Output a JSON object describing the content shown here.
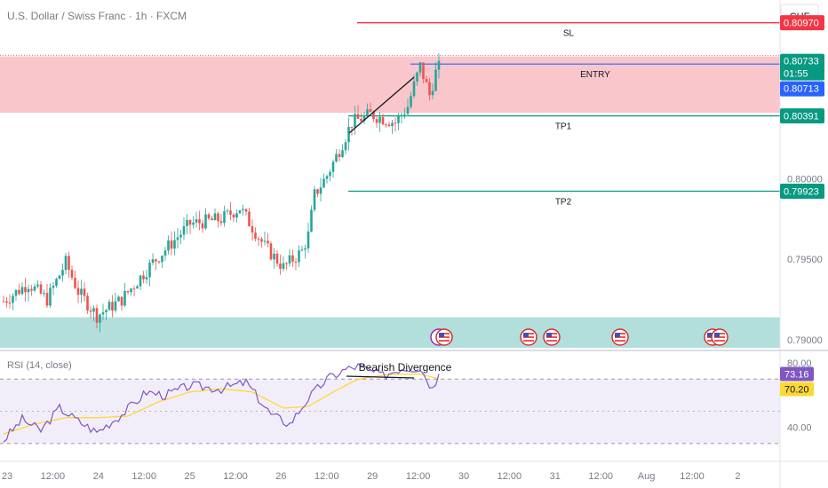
{
  "header": {
    "title": "U.S. Dollar / Swiss Franc · 1h · FXCM",
    "currency": "CHF"
  },
  "price_axis": {
    "ticks": [
      "0.80000",
      "0.79500",
      "0.79000"
    ],
    "badges": {
      "sl": "0.80970",
      "last": "0.80733",
      "countdown": "01:55",
      "entry": "0.80713",
      "tp1": "0.80391",
      "tp2": "0.79923"
    }
  },
  "annotations": {
    "sl": "SL",
    "entry": "ENTRY",
    "tp1": "TP1",
    "tp2": "TP2",
    "divergence": "Bearish Divergence"
  },
  "rsi_panel": {
    "label": "RSI (14, close)",
    "ticks": [
      "80.00",
      "40.00"
    ],
    "rsi_value": "73.16",
    "ma_value": "70.20"
  },
  "time_axis": {
    "labels": [
      "23",
      "12:00",
      "24",
      "12:00",
      "25",
      "12:00",
      "26",
      "12:00",
      "29",
      "12:00",
      "30",
      "12:00",
      "31",
      "12:00",
      "Aug",
      "12:00",
      "2"
    ]
  },
  "colors": {
    "up": "#26a69a",
    "down": "#ef5350",
    "sl_line": "#f23645",
    "tp_line": "#089981",
    "entry_line": "#2962ff",
    "rsi_line": "#7e57c2",
    "rsi_ma": "#fdd835",
    "resistance_zone": "#f9c6cb",
    "support_zone": "#b2dfdb"
  },
  "chart_data": [
    {
      "type": "candlestick",
      "symbol": "USDCHF",
      "timeframe": "1h",
      "x_range": [
        "Jul 23",
        "Aug 2"
      ],
      "ylim": [
        0.7895,
        0.811
      ],
      "anchors": [
        {
          "i": 0,
          "p": 0.7924
        },
        {
          "i": 8,
          "p": 0.7935
        },
        {
          "i": 14,
          "p": 0.7925
        },
        {
          "i": 20,
          "p": 0.7948
        },
        {
          "i": 24,
          "p": 0.793
        },
        {
          "i": 30,
          "p": 0.7915
        },
        {
          "i": 38,
          "p": 0.7925
        },
        {
          "i": 48,
          "p": 0.7948
        },
        {
          "i": 60,
          "p": 0.7972
        },
        {
          "i": 70,
          "p": 0.7975
        },
        {
          "i": 76,
          "p": 0.7982
        },
        {
          "i": 84,
          "p": 0.7958
        },
        {
          "i": 90,
          "p": 0.7945
        },
        {
          "i": 96,
          "p": 0.7955
        },
        {
          "i": 98,
          "p": 0.7965
        },
        {
          "i": 100,
          "p": 0.799
        },
        {
          "i": 104,
          "p": 0.8002
        },
        {
          "i": 108,
          "p": 0.8018
        },
        {
          "i": 112,
          "p": 0.8035
        },
        {
          "i": 118,
          "p": 0.804
        },
        {
          "i": 126,
          "p": 0.8035
        },
        {
          "i": 130,
          "p": 0.8045
        },
        {
          "i": 132,
          "p": 0.8058
        },
        {
          "i": 134,
          "p": 0.807
        },
        {
          "i": 137,
          "p": 0.8052
        },
        {
          "i": 139,
          "p": 0.8066
        },
        {
          "i": 140,
          "p": 0.8073
        }
      ],
      "last_close": 0.80733,
      "zones": [
        {
          "name": "resistance",
          "from": 0.8041,
          "to": 0.8076
        },
        {
          "name": "support",
          "from": 0.7895,
          "to": 0.7914
        }
      ],
      "levels": [
        {
          "name": "SL",
          "value": 0.8097
        },
        {
          "name": "ENTRY",
          "value": 0.80713
        },
        {
          "name": "TP1",
          "value": 0.80391
        },
        {
          "name": "TP2",
          "value": 0.79923
        }
      ]
    },
    {
      "type": "line",
      "title": "RSI (14, close)",
      "ylim": [
        20,
        85
      ],
      "bands": [
        70,
        50,
        30
      ],
      "series": [
        {
          "name": "RSI",
          "anchors": [
            {
              "i": 0,
              "v": 32
            },
            {
              "i": 6,
              "v": 45
            },
            {
              "i": 12,
              "v": 38
            },
            {
              "i": 18,
              "v": 52
            },
            {
              "i": 24,
              "v": 44
            },
            {
              "i": 30,
              "v": 37
            },
            {
              "i": 38,
              "v": 48
            },
            {
              "i": 46,
              "v": 62
            },
            {
              "i": 52,
              "v": 60
            },
            {
              "i": 60,
              "v": 66
            },
            {
              "i": 70,
              "v": 64
            },
            {
              "i": 78,
              "v": 68
            },
            {
              "i": 86,
              "v": 48
            },
            {
              "i": 92,
              "v": 42
            },
            {
              "i": 98,
              "v": 58
            },
            {
              "i": 104,
              "v": 70
            },
            {
              "i": 110,
              "v": 76
            },
            {
              "i": 114,
              "v": 78
            },
            {
              "i": 122,
              "v": 72
            },
            {
              "i": 128,
              "v": 77
            },
            {
              "i": 134,
              "v": 77
            },
            {
              "i": 138,
              "v": 64
            },
            {
              "i": 140,
              "v": 73.16
            }
          ]
        },
        {
          "name": "RSI-based MA",
          "anchors": [
            {
              "i": 0,
              "v": 36
            },
            {
              "i": 10,
              "v": 42
            },
            {
              "i": 20,
              "v": 46
            },
            {
              "i": 30,
              "v": 46
            },
            {
              "i": 40,
              "v": 47
            },
            {
              "i": 50,
              "v": 56
            },
            {
              "i": 60,
              "v": 62
            },
            {
              "i": 70,
              "v": 64
            },
            {
              "i": 80,
              "v": 62
            },
            {
              "i": 90,
              "v": 52
            },
            {
              "i": 98,
              "v": 53
            },
            {
              "i": 106,
              "v": 62
            },
            {
              "i": 114,
              "v": 70
            },
            {
              "i": 124,
              "v": 73
            },
            {
              "i": 134,
              "v": 73
            },
            {
              "i": 140,
              "v": 70.2
            }
          ]
        }
      ]
    }
  ]
}
